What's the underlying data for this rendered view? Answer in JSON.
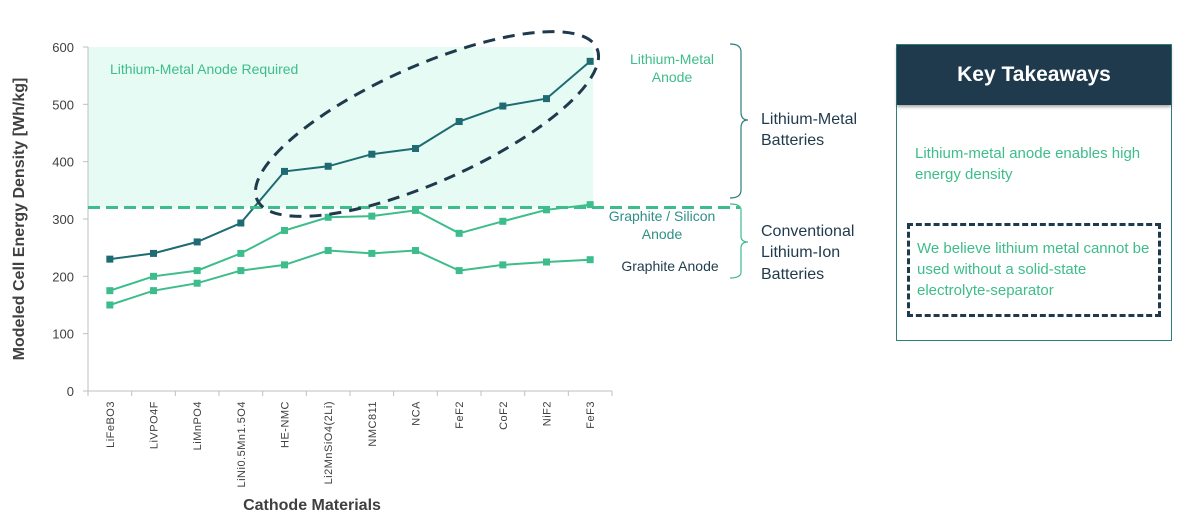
{
  "chart_data": {
    "type": "line",
    "title": "",
    "xlabel": "Cathode Materials",
    "ylabel": "Modeled Cell Energy Density [Wh/kg]",
    "ylim": [
      0,
      600
    ],
    "yticks": [
      0,
      100,
      200,
      300,
      400,
      500,
      600
    ],
    "categories": [
      "LiFeBO3",
      "LiVPO4F",
      "LiMnPO4",
      "LiNi0.5Mn1.5O4",
      "HE-NMC",
      "Li2MnSiO4(2Li)",
      "NMC811",
      "NCA",
      "FeF2",
      "CoF2",
      "NiF2",
      "FeF3"
    ],
    "series": [
      {
        "name": "Lithium-Metal Anode",
        "color": "#1f6b73",
        "values": [
          230,
          240,
          260,
          293,
          383,
          392,
          413,
          423,
          470,
          497,
          510,
          575
        ]
      },
      {
        "name": "Graphite / Silicon Anode",
        "color": "#3dbd8b",
        "values": [
          175,
          200,
          210,
          240,
          280,
          303,
          305,
          315,
          275,
          296,
          316,
          325
        ]
      },
      {
        "name": "Graphite Anode",
        "color": "#3dbd8b",
        "values": [
          150,
          175,
          188,
          210,
          220,
          245,
          240,
          245,
          210,
          220,
          225,
          229
        ]
      }
    ],
    "threshold": 320,
    "region_label": "Lithium-Metal Anode Required",
    "series_labels": {
      "li_metal": [
        "Lithium-Metal",
        "Anode"
      ],
      "graphite_silicon": [
        "Graphite / Silicon",
        "Anode"
      ],
      "graphite": [
        "Graphite Anode"
      ]
    },
    "group_labels": {
      "li_metal_batteries": [
        "Lithium-Metal",
        "Batteries"
      ],
      "li_ion_batteries": [
        "Conventional",
        "Lithium-Ion",
        "Batteries"
      ]
    }
  },
  "takeaways": {
    "title": "Key Takeaways",
    "point1": "Lithium-metal anode enables high energy density",
    "point2": "We believe lithium metal cannot be used without a solid-state electrolyte-separator"
  }
}
